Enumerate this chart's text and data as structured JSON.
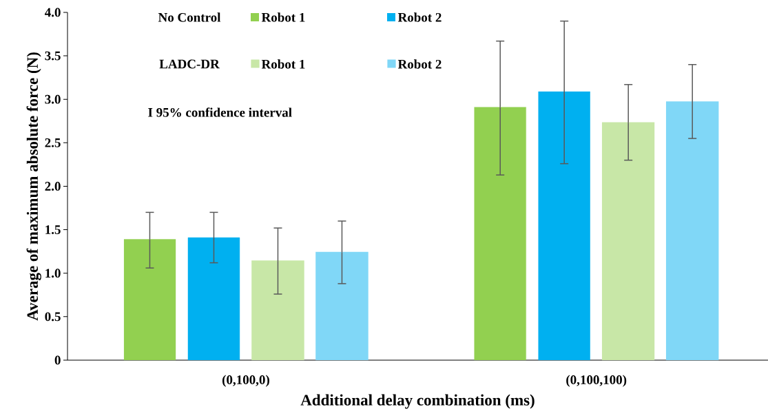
{
  "chart_data": {
    "type": "bar",
    "xlabel": "Additional delay combination (ms)",
    "ylabel": "Average of maximum  absolute force (N)",
    "categories": [
      "(0,100,0)",
      "(0,100,100)"
    ],
    "series": [
      {
        "name": "Robot 1",
        "color": "#92d050",
        "values": [
          1.39,
          2.91
        ],
        "errors": [
          [
            1.06,
            1.7
          ],
          [
            2.13,
            3.67
          ]
        ]
      },
      {
        "name": "Robot 2",
        "color": "#00b0f0",
        "values": [
          1.41,
          3.09
        ],
        "errors": [
          [
            1.12,
            1.7
          ],
          [
            2.26,
            3.9
          ]
        ]
      },
      {
        "name": "Robot 1",
        "color": "#c8e7a7",
        "values": [
          1.14,
          2.73
        ],
        "errors": [
          [
            0.76,
            1.52
          ],
          [
            2.3,
            3.17
          ]
        ]
      },
      {
        "name": "Robot 2",
        "color": "#80d7f7",
        "values": [
          1.24,
          2.97
        ],
        "errors": [
          [
            0.88,
            1.6
          ],
          [
            2.55,
            3.4
          ]
        ]
      }
    ],
    "annotations": [
      "No Control",
      "LADC-DR",
      "I 95% confidence interval"
    ],
    "ylim": [
      0,
      4.0
    ],
    "yticks": [
      0,
      0.5,
      {
        "value": 1,
        "label": "1.0"
      },
      1.5,
      {
        "value": 2,
        "label": "2.0"
      },
      2.5,
      {
        "value": 3,
        "label": "3.0"
      },
      3.5,
      {
        "value": 4,
        "label": "4.0"
      }
    ],
    "grid": false,
    "legend": "top left"
  }
}
